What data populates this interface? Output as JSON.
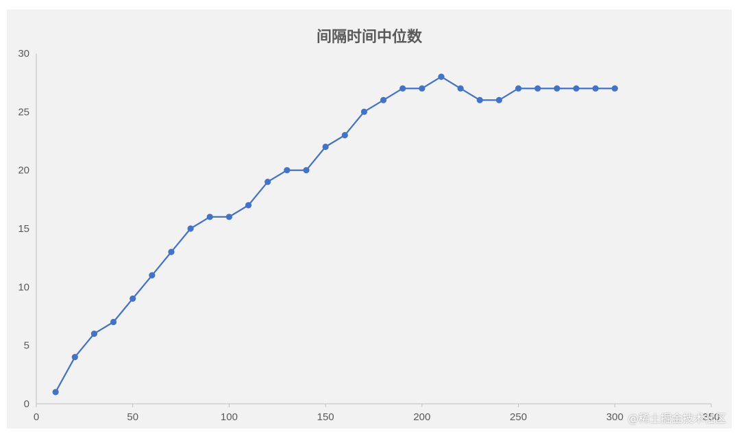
{
  "chart_data": {
    "type": "line",
    "title": "间隔时间中位数",
    "xlabel": "",
    "ylabel": "",
    "xlim": [
      0,
      350
    ],
    "ylim": [
      0,
      30
    ],
    "x_ticks": [
      0,
      50,
      100,
      150,
      200,
      250,
      300,
      350
    ],
    "y_ticks": [
      0,
      5,
      10,
      15,
      20,
      25,
      30
    ],
    "grid": false,
    "legend": "none",
    "series": [
      {
        "color": "#4472c4",
        "x": [
          10,
          20,
          30,
          40,
          50,
          60,
          70,
          80,
          90,
          100,
          110,
          120,
          130,
          140,
          150,
          160,
          170,
          180,
          190,
          200,
          210,
          220,
          230,
          240,
          250,
          260,
          270,
          280,
          290,
          300
        ],
        "y": [
          1,
          4,
          6,
          7,
          9,
          11,
          13,
          15,
          16,
          16,
          17,
          19,
          20,
          20,
          22,
          23,
          25,
          26,
          27,
          27,
          28,
          27,
          26,
          26,
          27,
          27,
          27,
          27,
          27,
          27
        ]
      }
    ]
  },
  "watermark": "@稀土掘金技术社区"
}
